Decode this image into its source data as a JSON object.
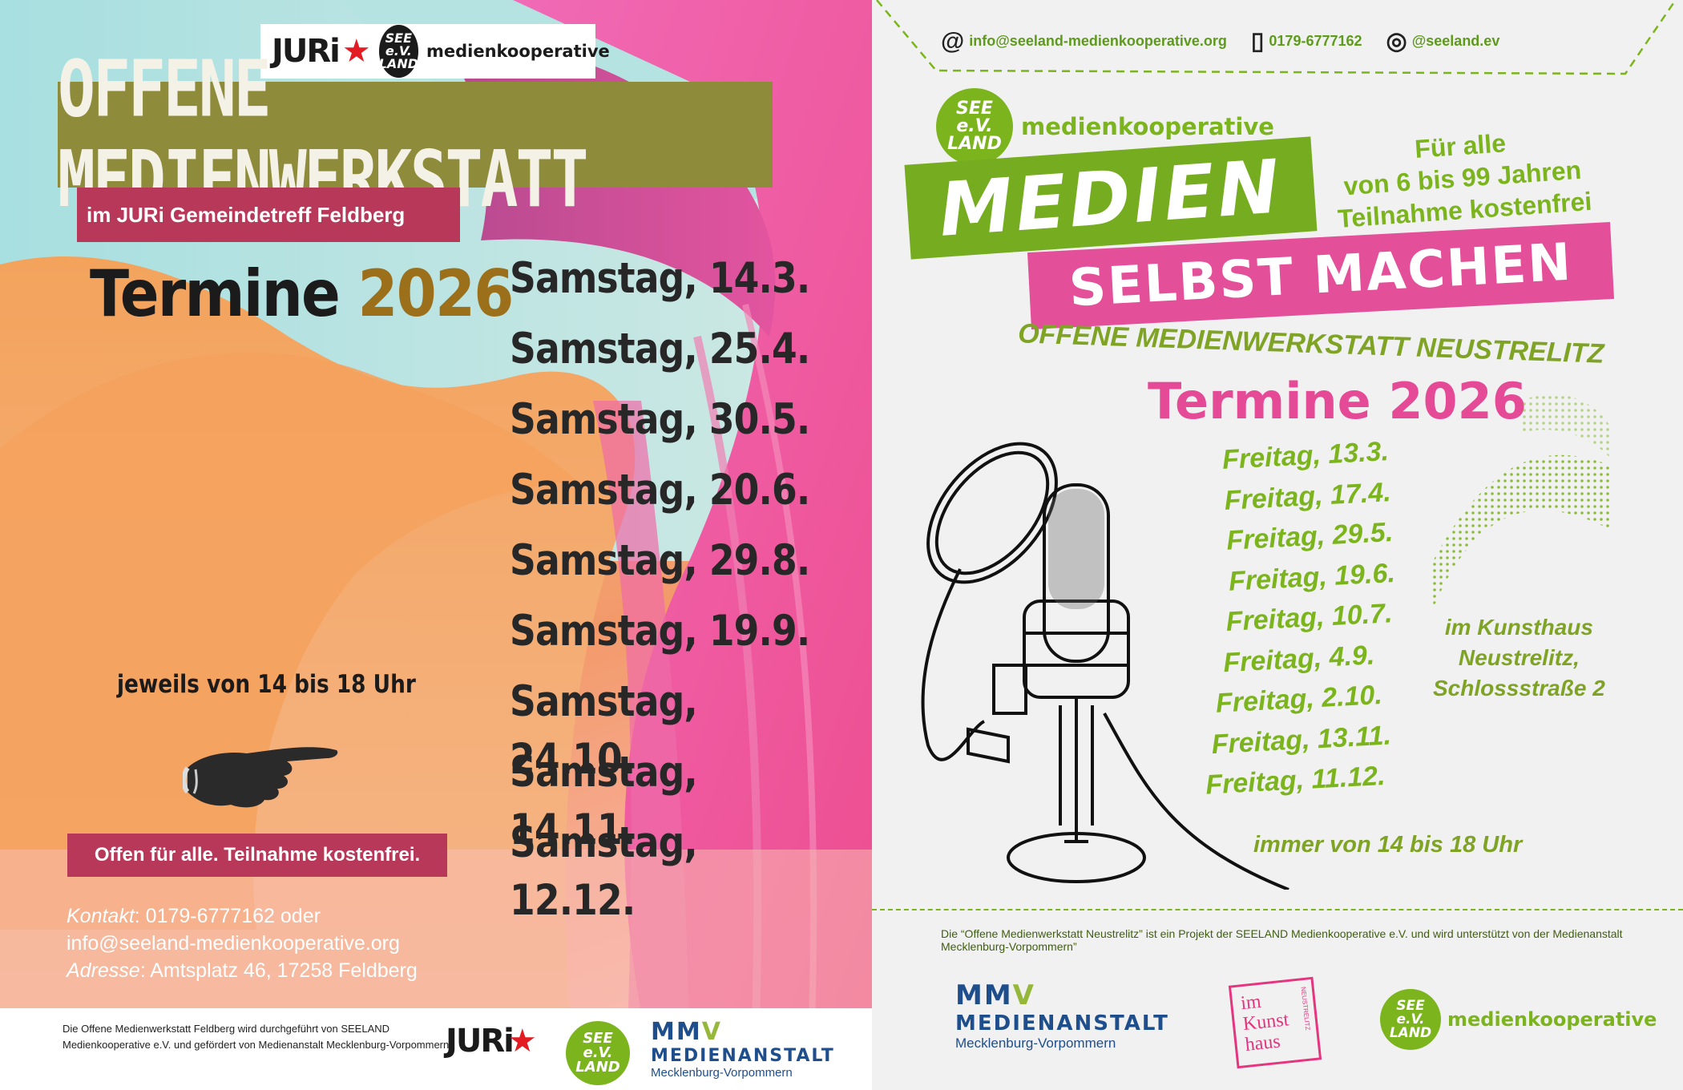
{
  "left": {
    "logo_juri": "JURi",
    "logo_seeland": "SEE e.V. LAND",
    "logo_medienkooperative": "medienkooperative",
    "title": "OFFENE MEDIENWERKSTATT",
    "subtitle": "im  JURi Gemeindetreff Feldberg",
    "termine_word": "Termine",
    "termine_year": "2026",
    "dates": [
      "Samstag, 14.3.",
      "Samstag, 25.4.",
      "Samstag, 30.5.",
      "Samstag, 20.6.",
      "Samstag, 29.8.",
      "Samstag, 19.9.",
      "Samstag, 24.10.",
      "Samstag, 14.11.",
      "Samstag, 12.12."
    ],
    "time": "jeweils von 14 bis 18 Uhr",
    "open_note": "Offen für alle. Teilnahme kostenfrei.",
    "contact_label": "Kontakt",
    "contact_value": ": 0179-6777162 oder",
    "email": "info@seeland-medienkooperative.org",
    "address_label": "Adresse",
    "address_value": ": Amtsplatz 46, 17258 Feldberg",
    "footer_credit": "Die Offene Medienwerkstatt Feldberg wird durchgeführt von SEELAND Medienkooperative e.V. und gefördert von Medienanstalt Mecklenburg-Vorpommern",
    "mmv_m": "MM",
    "mmv_v": "V",
    "mmv_name": "MEDIENANSTALT",
    "mmv_region": "Mecklenburg-Vorpommern"
  },
  "right": {
    "email": "info@seeland-medienkooperative.org",
    "phone": "0179-6777162",
    "instagram": "@seeland.ev",
    "logo_medienkooperative": "medienkooperative",
    "medien": "MEDIEN",
    "fuer_alle": [
      "Für alle",
      "von 6 bis 99 Jahren",
      "Teilnahme kostenfrei"
    ],
    "selbst_machen": "SELBST MACHEN",
    "subtitle": "OFFENE MEDIENWERKSTATT NEUSTRELITZ",
    "termine": "Termine 2026",
    "dates": [
      "Freitag, 13.3.",
      "Freitag, 17.4.",
      "Freitag, 29.5.",
      "Freitag, 19.6.",
      "Freitag, 10.7.",
      "Freitag, 4.9.",
      "Freitag, 2.10.",
      "Freitag, 13.11.",
      "Freitag, 11.12."
    ],
    "location": [
      "im Kunsthaus",
      "Neustrelitz,",
      "Schlossstraße 2"
    ],
    "time": "immer von 14 bis 18 Uhr",
    "credit": "Die “Offene Medienwerkstatt Neustrelitz” ist ein Projekt der SEELAND Medienkooperative e.V. und wird unterstützt von der Medienanstalt Mecklenburg-Vorpommern”",
    "mmv_m": "MM",
    "mmv_v": "V",
    "mmv_name": "MEDIENANSTALT",
    "mmv_region": "Mecklenburg-Vorpommern",
    "kunsthaus_logo": [
      "im",
      "Kunst",
      "haus"
    ],
    "kunsthaus_side": "NEUSTRELITZ"
  },
  "colors": {
    "olive": "#8e8b3a",
    "raspberry": "#b8385a",
    "green": "#7cb41e",
    "pink": "#e34f98",
    "mmv_blue": "#1f4e8c"
  }
}
